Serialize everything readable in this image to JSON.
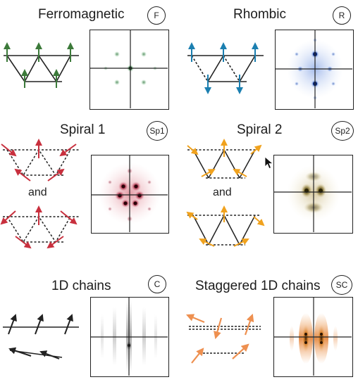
{
  "panels": {
    "ferro": {
      "title": "Ferromagnetic",
      "badge": "F",
      "arrow_color": "#3c7a3a",
      "pattern_color": "#2f6f3a"
    },
    "rhombic": {
      "title": "Rhombic",
      "badge": "R",
      "arrow_color": "#1b7fb0",
      "pattern_color": "#1f4db0"
    },
    "spiral1": {
      "title": "Spiral 1",
      "badge": "Sp1",
      "and_label": "and",
      "arrow_color": "#c8303e",
      "pattern_color": "#8c0f2a"
    },
    "spiral2": {
      "title": "Spiral 2",
      "badge": "Sp2",
      "and_label": "and",
      "arrow_color": "#f0a21e",
      "pattern_color": "#4f4410"
    },
    "chains": {
      "title": "1D chains",
      "badge": "C",
      "arrow_color": "#222222",
      "pattern_color": "#111111"
    },
    "stagger": {
      "title": "Staggered 1D chains",
      "badge": "SC",
      "arrow_color": "#ee9050",
      "pattern_color": "#3a2208"
    }
  },
  "icons": {
    "cursor": "mouse-pointer-icon"
  }
}
